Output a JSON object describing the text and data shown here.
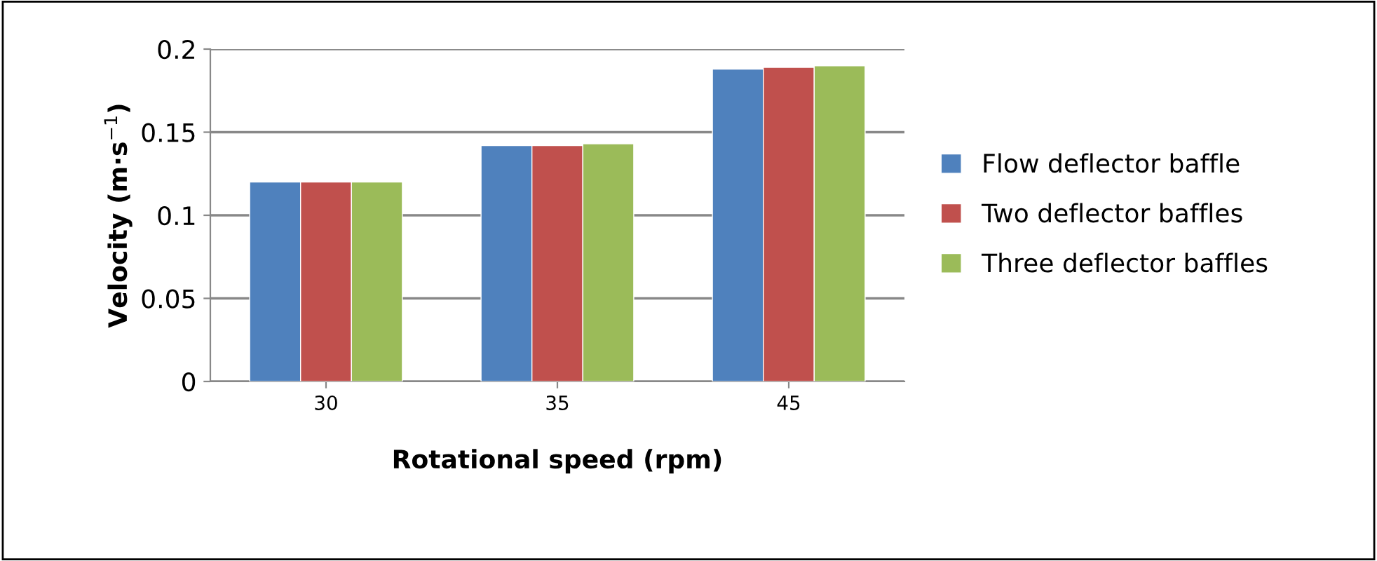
{
  "chart_data": {
    "type": "bar",
    "xlabel": "Rotational speed (rpm)",
    "ylabel": "Velocity (m·s$^{−1}$)",
    "categories": [
      "30",
      "35",
      "45"
    ],
    "series": [
      {
        "name": "Flow deflector baffle",
        "color": "#4f81bd",
        "values": [
          0.12,
          0.142,
          0.188
        ]
      },
      {
        "name": "Two deflector baffles",
        "color": "#c0504d",
        "values": [
          0.12,
          0.142,
          0.189
        ]
      },
      {
        "name": "Three deflector baffles",
        "color": "#9bbb59",
        "values": [
          0.12,
          0.143,
          0.19
        ]
      }
    ],
    "ylim": [
      0,
      0.2
    ],
    "yticks": [
      0,
      0.05,
      0.1,
      0.15,
      0.2
    ],
    "grid": "y",
    "legend": "right"
  }
}
